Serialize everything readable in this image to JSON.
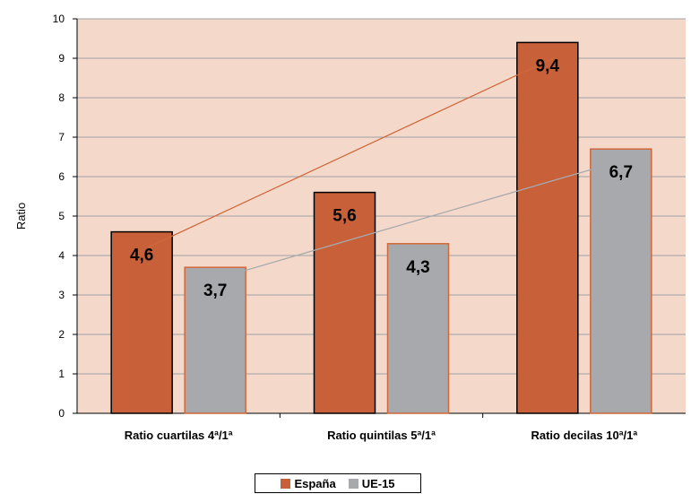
{
  "chart_data": {
    "type": "bar",
    "ylabel": "Ratio",
    "xlabel": "",
    "ylim": [
      0,
      10
    ],
    "yticks": [
      "0",
      "1",
      "2",
      "3",
      "4",
      "5",
      "6",
      "7",
      "8",
      "9",
      "10"
    ],
    "categories": [
      "Ratio cuartilas 4ª/1ª",
      "Ratio quintilas 5ª/1ª",
      "Ratio decilas 10ª/1ª"
    ],
    "series": [
      {
        "name": "España",
        "values": [
          4.6,
          5.6,
          9.4
        ],
        "labels": [
          "4,6",
          "5,6",
          "9,4"
        ],
        "color": "#c8603a",
        "border": "#000000",
        "trendline_color": "#d0683a"
      },
      {
        "name": "UE-15",
        "values": [
          3.7,
          4.3,
          6.7
        ],
        "labels": [
          "3,7",
          "4,3",
          "6,7"
        ],
        "color": "#a7a9ac",
        "border": "#d0683a",
        "trendline_color": "#a7a9ac"
      }
    ],
    "plot_background": "#f4d9cb",
    "gridlines": true,
    "legend_position": "bottom"
  }
}
